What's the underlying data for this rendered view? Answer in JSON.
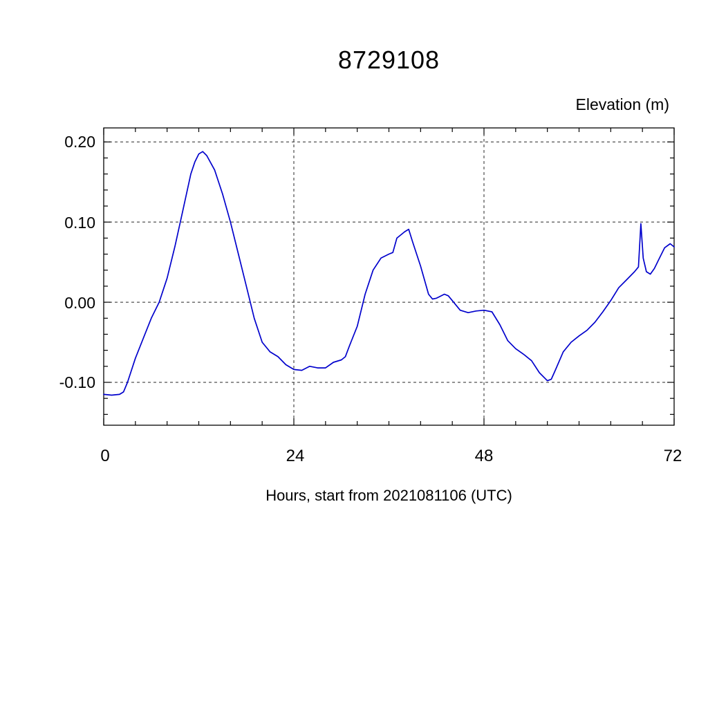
{
  "chart_data": {
    "type": "line",
    "title": "8729108",
    "ylabel": "Elevation (m)",
    "xlabel": "Hours, start from 2021081106 (UTC)",
    "xlim": [
      0,
      72
    ],
    "ylim": [
      -0.1535,
      0.2175
    ],
    "xticks": [
      0,
      24,
      48,
      72
    ],
    "xtick_labels": [
      "0",
      "24",
      "48",
      "72"
    ],
    "yticks": [
      0.2,
      0.1,
      0.0,
      -0.1
    ],
    "ytick_labels": [
      "0.20",
      "0.10",
      "0.00",
      "-0.10"
    ],
    "x_gridlines": [
      24,
      48
    ],
    "y_gridlines": [
      0.2,
      0.1,
      0.0,
      -0.1
    ],
    "grid_style": "dashed",
    "legend": "none",
    "line_color": "#0000cc",
    "series": [
      {
        "name": "elevation",
        "points": [
          [
            0,
            -0.115
          ],
          [
            1,
            -0.116
          ],
          [
            2,
            -0.115
          ],
          [
            2.5,
            -0.112
          ],
          [
            3,
            -0.1
          ],
          [
            4,
            -0.07
          ],
          [
            5,
            -0.045
          ],
          [
            6,
            -0.02
          ],
          [
            7,
            0.0
          ],
          [
            8,
            0.03
          ],
          [
            9,
            0.07
          ],
          [
            10,
            0.115
          ],
          [
            11,
            0.16
          ],
          [
            11.5,
            0.175
          ],
          [
            12,
            0.185
          ],
          [
            12.5,
            0.188
          ],
          [
            13,
            0.183
          ],
          [
            14,
            0.165
          ],
          [
            15,
            0.135
          ],
          [
            16,
            0.1
          ],
          [
            17,
            0.06
          ],
          [
            18,
            0.02
          ],
          [
            19,
            -0.02
          ],
          [
            20,
            -0.05
          ],
          [
            21,
            -0.062
          ],
          [
            22,
            -0.068
          ],
          [
            23,
            -0.078
          ],
          [
            24,
            -0.084
          ],
          [
            25,
            -0.085
          ],
          [
            26,
            -0.08
          ],
          [
            27,
            -0.082
          ],
          [
            28,
            -0.082
          ],
          [
            29,
            -0.075
          ],
          [
            30,
            -0.072
          ],
          [
            30.5,
            -0.068
          ],
          [
            31,
            -0.055
          ],
          [
            32,
            -0.03
          ],
          [
            33,
            0.01
          ],
          [
            34,
            0.04
          ],
          [
            35,
            0.055
          ],
          [
            36,
            0.06
          ],
          [
            36.5,
            0.062
          ],
          [
            37,
            0.08
          ],
          [
            38,
            0.088
          ],
          [
            38.5,
            0.091
          ],
          [
            39,
            0.075
          ],
          [
            40,
            0.045
          ],
          [
            41,
            0.01
          ],
          [
            41.5,
            0.004
          ],
          [
            42,
            0.005
          ],
          [
            43,
            0.01
          ],
          [
            43.5,
            0.008
          ],
          [
            44,
            0.002
          ],
          [
            45,
            -0.01
          ],
          [
            46,
            -0.013
          ],
          [
            47,
            -0.011
          ],
          [
            48,
            -0.01
          ],
          [
            49,
            -0.012
          ],
          [
            50,
            -0.028
          ],
          [
            51,
            -0.048
          ],
          [
            52,
            -0.058
          ],
          [
            53,
            -0.065
          ],
          [
            54,
            -0.073
          ],
          [
            55,
            -0.088
          ],
          [
            56,
            -0.098
          ],
          [
            56.5,
            -0.096
          ],
          [
            57,
            -0.085
          ],
          [
            58,
            -0.062
          ],
          [
            59,
            -0.05
          ],
          [
            60,
            -0.042
          ],
          [
            61,
            -0.035
          ],
          [
            62,
            -0.025
          ],
          [
            63,
            -0.012
          ],
          [
            64,
            0.002
          ],
          [
            65,
            0.018
          ],
          [
            66,
            0.028
          ],
          [
            67,
            0.038
          ],
          [
            67.5,
            0.044
          ],
          [
            67.8,
            0.098
          ],
          [
            68.1,
            0.055
          ],
          [
            68.5,
            0.038
          ],
          [
            69,
            0.035
          ],
          [
            69.5,
            0.042
          ],
          [
            70,
            0.052
          ],
          [
            70.8,
            0.068
          ],
          [
            71.5,
            0.073
          ],
          [
            72,
            0.069
          ]
        ]
      }
    ]
  }
}
